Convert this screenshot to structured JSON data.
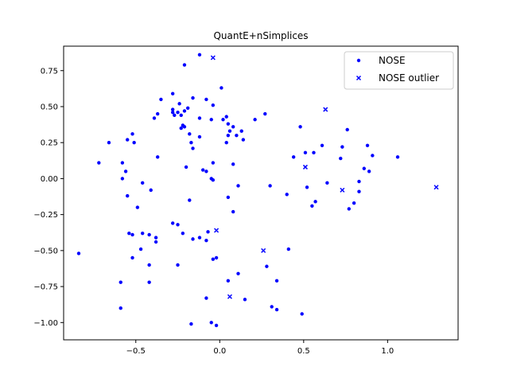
{
  "chart_data": {
    "type": "scatter",
    "title": "QuantE+nSimplices",
    "xlabel": "",
    "ylabel": "",
    "xlim": [
      -0.93,
      1.42
    ],
    "ylim": [
      -1.12,
      0.92
    ],
    "x_ticks": [
      -0.5,
      0.0,
      0.5,
      1.0
    ],
    "x_tick_labels": [
      "−0.5",
      "0.0",
      "0.5",
      "1.0"
    ],
    "y_ticks": [
      -1.0,
      -0.75,
      -0.5,
      -0.25,
      0.0,
      0.25,
      0.5,
      0.75
    ],
    "y_tick_labels": [
      "−1.00",
      "−0.75",
      "−0.50",
      "−0.25",
      "0.00",
      "0.25",
      "0.50",
      "0.75"
    ],
    "grid": false,
    "legend_position": "top-right",
    "series": [
      {
        "name": "NOSE",
        "marker": "dot",
        "color": "#0000ff",
        "points": [
          [
            -0.12,
            0.86
          ],
          [
            -0.21,
            0.79
          ],
          [
            0.01,
            0.63
          ],
          [
            -0.28,
            0.59
          ],
          [
            -0.35,
            0.55
          ],
          [
            -0.16,
            0.56
          ],
          [
            -0.08,
            0.55
          ],
          [
            -0.24,
            0.52
          ],
          [
            -0.04,
            0.51
          ],
          [
            -0.28,
            0.48
          ],
          [
            -0.19,
            0.49
          ],
          [
            -0.21,
            0.47
          ],
          [
            -0.28,
            0.46
          ],
          [
            -0.25,
            0.46
          ],
          [
            -0.37,
            0.45
          ],
          [
            -0.23,
            0.44
          ],
          [
            -0.27,
            0.44
          ],
          [
            -0.39,
            0.42
          ],
          [
            -0.12,
            0.42
          ],
          [
            -0.05,
            0.41
          ],
          [
            0.02,
            0.41
          ],
          [
            0.04,
            0.43
          ],
          [
            0.21,
            0.41
          ],
          [
            0.27,
            0.45
          ],
          [
            0.05,
            0.38
          ],
          [
            0.08,
            0.36
          ],
          [
            -0.22,
            0.37
          ],
          [
            -0.23,
            0.35
          ],
          [
            -0.21,
            0.36
          ],
          [
            -0.18,
            0.31
          ],
          [
            0.06,
            0.33
          ],
          [
            0.13,
            0.33
          ],
          [
            -0.12,
            0.29
          ],
          [
            0.05,
            0.3
          ],
          [
            0.1,
            0.3
          ],
          [
            -0.66,
            0.25
          ],
          [
            -0.55,
            0.27
          ],
          [
            -0.52,
            0.31
          ],
          [
            -0.17,
            0.25
          ],
          [
            0.04,
            0.25
          ],
          [
            0.14,
            0.27
          ],
          [
            -0.16,
            0.21
          ],
          [
            -0.51,
            0.25
          ],
          [
            -0.37,
            0.15
          ],
          [
            -0.58,
            0.11
          ],
          [
            -0.72,
            0.11
          ],
          [
            -0.56,
            0.05
          ],
          [
            -0.2,
            0.08
          ],
          [
            -0.1,
            0.06
          ],
          [
            -0.08,
            0.05
          ],
          [
            -0.04,
            0.11
          ],
          [
            0.08,
            0.1
          ],
          [
            -0.58,
            0.0
          ],
          [
            -0.46,
            -0.03
          ],
          [
            -0.41,
            -0.08
          ],
          [
            -0.05,
            0.0
          ],
          [
            -0.04,
            -0.01
          ],
          [
            0.05,
            -0.13
          ],
          [
            0.11,
            -0.05
          ],
          [
            -0.55,
            -0.12
          ],
          [
            -0.49,
            -0.2
          ],
          [
            -0.18,
            -0.15
          ],
          [
            0.08,
            -0.23
          ],
          [
            0.3,
            -0.05
          ],
          [
            0.4,
            -0.11
          ],
          [
            0.44,
            0.15
          ],
          [
            0.48,
            0.36
          ],
          [
            0.51,
            0.18
          ],
          [
            0.52,
            -0.06
          ],
          [
            0.56,
            0.18
          ],
          [
            0.55,
            -0.19
          ],
          [
            0.57,
            -0.16
          ],
          [
            0.61,
            0.23
          ],
          [
            0.64,
            -0.03
          ],
          [
            0.72,
            0.14
          ],
          [
            0.73,
            0.22
          ],
          [
            0.76,
            0.34
          ],
          [
            0.77,
            -0.21
          ],
          [
            0.8,
            -0.17
          ],
          [
            0.83,
            -0.02
          ],
          [
            0.83,
            -0.09
          ],
          [
            0.86,
            0.07
          ],
          [
            0.88,
            0.23
          ],
          [
            0.89,
            0.05
          ],
          [
            0.91,
            0.16
          ],
          [
            1.06,
            0.15
          ],
          [
            -0.54,
            -0.38
          ],
          [
            -0.52,
            -0.39
          ],
          [
            -0.46,
            -0.38
          ],
          [
            -0.42,
            -0.39
          ],
          [
            -0.38,
            -0.41
          ],
          [
            -0.38,
            -0.44
          ],
          [
            -0.28,
            -0.31
          ],
          [
            -0.25,
            -0.32
          ],
          [
            -0.22,
            -0.38
          ],
          [
            -0.16,
            -0.42
          ],
          [
            -0.12,
            -0.41
          ],
          [
            -0.08,
            -0.43
          ],
          [
            -0.07,
            -0.37
          ],
          [
            -0.47,
            -0.49
          ],
          [
            -0.52,
            -0.55
          ],
          [
            -0.42,
            -0.6
          ],
          [
            -0.25,
            -0.6
          ],
          [
            -0.04,
            -0.56
          ],
          [
            -0.02,
            -0.55
          ],
          [
            0.11,
            -0.66
          ],
          [
            0.05,
            -0.71
          ],
          [
            -0.59,
            -0.72
          ],
          [
            -0.42,
            -0.72
          ],
          [
            0.28,
            -0.61
          ],
          [
            0.34,
            -0.71
          ],
          [
            0.41,
            -0.49
          ],
          [
            -0.08,
            -0.83
          ],
          [
            0.15,
            -0.84
          ],
          [
            0.31,
            -0.89
          ],
          [
            0.34,
            -0.91
          ],
          [
            0.49,
            -0.94
          ],
          [
            -0.59,
            -0.9
          ],
          [
            -0.17,
            -1.01
          ],
          [
            -0.05,
            -1.0
          ],
          [
            -0.02,
            -1.02
          ],
          [
            -0.84,
            -0.52
          ]
        ]
      },
      {
        "name": "NOSE outlier",
        "marker": "x",
        "color": "#0000ff",
        "points": [
          [
            -0.04,
            0.84
          ],
          [
            0.63,
            0.48
          ],
          [
            0.51,
            0.08
          ],
          [
            0.73,
            -0.08
          ],
          [
            1.29,
            -0.06
          ],
          [
            -0.02,
            -0.36
          ],
          [
            0.26,
            -0.5
          ],
          [
            0.06,
            -0.82
          ]
        ]
      }
    ]
  }
}
